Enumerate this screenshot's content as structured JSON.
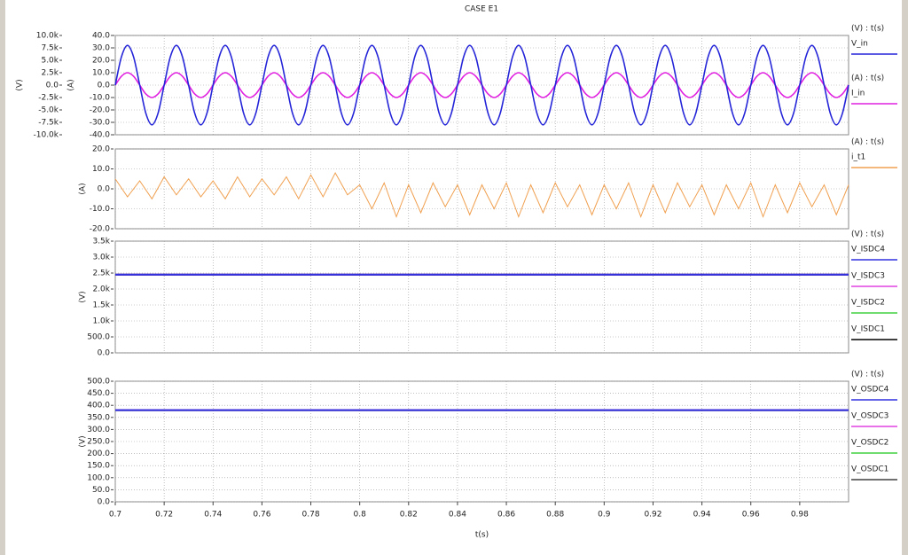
{
  "title": "CASE E1",
  "chart_data": [
    {
      "type": "line",
      "ylabel": "(V)",
      "y2label": "(A)",
      "xlim": [
        0.7,
        1.0
      ],
      "xticks": [
        0.7,
        0.72,
        0.74,
        0.76,
        0.78,
        0.8,
        0.82,
        0.84,
        0.86,
        0.88,
        0.9,
        0.92,
        0.94,
        0.96,
        0.98
      ],
      "ylim": [
        -10000,
        10000
      ],
      "yticks": [
        {
          "value": -10000,
          "label": "-10.0k"
        },
        {
          "value": -7500,
          "label": "-7.5k"
        },
        {
          "value": -5000,
          "label": "-5.0k"
        },
        {
          "value": -2500,
          "label": "-2.5k"
        },
        {
          "value": 0,
          "label": "0.0"
        },
        {
          "value": 2500,
          "label": "2.5k"
        },
        {
          "value": 5000,
          "label": "5.0k"
        },
        {
          "value": 7500,
          "label": "7.5k"
        },
        {
          "value": 10000,
          "label": "10.0k"
        }
      ],
      "y2lim": [
        -40,
        40
      ],
      "y2ticks": [
        {
          "value": -40,
          "label": "-40.0"
        },
        {
          "value": -30,
          "label": "-30.0"
        },
        {
          "value": -20,
          "label": "-20.0"
        },
        {
          "value": -10,
          "label": "-10.0"
        },
        {
          "value": 0,
          "label": "0.0"
        },
        {
          "value": 10,
          "label": "10.0"
        },
        {
          "value": 20,
          "label": "20.0"
        },
        {
          "value": 30,
          "label": "30.0"
        },
        {
          "value": 40,
          "label": "40.0"
        }
      ],
      "grid": true,
      "x": [
        0.7,
        0.7025,
        0.705,
        0.7075,
        0.71,
        0.7125,
        0.715,
        0.7175,
        0.72,
        0.7225,
        0.725,
        0.7275,
        0.73,
        0.7325,
        0.735,
        0.7375,
        0.74,
        0.7425,
        0.745,
        0.7475,
        0.75,
        0.7525,
        0.755,
        0.7575,
        0.76,
        0.7625,
        0.765,
        0.7675,
        0.77,
        0.7725,
        0.775,
        0.7775,
        0.78,
        0.7825,
        0.785,
        0.7875,
        0.79,
        0.7925,
        0.795,
        0.7975,
        0.8,
        0.8025,
        0.805,
        0.8075,
        0.81,
        0.8125,
        0.815,
        0.8175,
        0.82,
        0.8225,
        0.825,
        0.8275,
        0.83,
        0.8325,
        0.835,
        0.8375,
        0.84,
        0.8425,
        0.845,
        0.8475,
        0.85,
        0.8525,
        0.855,
        0.8575,
        0.86,
        0.8625,
        0.865,
        0.8675,
        0.87,
        0.8725,
        0.875,
        0.8775,
        0.88,
        0.8825,
        0.885,
        0.8875,
        0.89,
        0.8925,
        0.895,
        0.8975,
        0.9,
        0.9025,
        0.905,
        0.9075,
        0.91,
        0.9125,
        0.915,
        0.9175,
        0.92,
        0.9225,
        0.925,
        0.9275,
        0.93,
        0.9325,
        0.935,
        0.9375,
        0.94,
        0.9425,
        0.945,
        0.9475,
        0.95,
        0.9525,
        0.955,
        0.9575,
        0.96,
        0.9625,
        0.965,
        0.9675,
        0.97,
        0.9725,
        0.975,
        0.9775,
        0.98,
        0.9825,
        0.985,
        0.9875,
        0.99,
        0.9925,
        0.995,
        0.9975,
        1.0
      ],
      "series": [
        {
          "name": "V_in",
          "legend_title": "(V) : t(s)",
          "color": "#2424d8",
          "smooth": true,
          "values": [
            0,
            5657,
            8000,
            5657,
            0,
            -5657,
            -8000,
            -5657,
            0,
            5657,
            8000,
            5657,
            0,
            -5657,
            -8000,
            -5657,
            0,
            5657,
            8000,
            5657,
            0,
            -5657,
            -8000,
            -5657,
            0,
            5657,
            8000,
            5657,
            0,
            -5657,
            -8000,
            -5657,
            0,
            5657,
            8000,
            5657,
            0,
            -5657,
            -8000,
            -5657,
            0,
            5657,
            8000,
            5657,
            0,
            -5657,
            -8000,
            -5657,
            0,
            5657,
            8000,
            5657,
            0,
            -5657,
            -8000,
            -5657,
            0,
            5657,
            8000,
            5657,
            0,
            -5657,
            -8000,
            -5657,
            0,
            5657,
            8000,
            5657,
            0,
            -5657,
            -8000,
            -5657,
            0,
            5657,
            8000,
            5657,
            0,
            -5657,
            -8000,
            -5657,
            0,
            5657,
            8000,
            5657,
            0,
            -5657,
            -8000,
            -5657,
            0,
            5657,
            8000,
            5657,
            0,
            -5657,
            -8000,
            -5657,
            0,
            5657,
            8000,
            5657,
            0,
            -5657,
            -8000,
            -5657,
            0,
            5657,
            8000,
            5657,
            0,
            -5657,
            -8000,
            -5657,
            0,
            5657,
            8000,
            5657,
            0,
            -5657,
            -8000,
            -5657,
            0
          ]
        },
        {
          "name": "I_in",
          "legend_title": "(A) : t(s)",
          "color": "#e020e0",
          "axis": "y2",
          "smooth": true,
          "values": [
            0,
            7.1,
            10,
            7.1,
            0,
            -7.1,
            -10,
            -7.1,
            0,
            7.1,
            10,
            7.1,
            0,
            -7.1,
            -10,
            -7.1,
            0,
            7.1,
            10,
            7.1,
            0,
            -7.1,
            -10,
            -7.1,
            0,
            7.1,
            10,
            7.1,
            0,
            -7.1,
            -10,
            -7.1,
            0,
            7.1,
            10,
            7.1,
            0,
            -7.1,
            -10,
            -7.1,
            0,
            7.1,
            10,
            7.1,
            0,
            -7.1,
            -10,
            -7.1,
            0,
            7.1,
            10,
            7.1,
            0,
            -7.1,
            -10,
            -7.1,
            0,
            7.1,
            10,
            7.1,
            0,
            -7.1,
            -10,
            -7.1,
            0,
            7.1,
            10,
            7.1,
            0,
            -7.1,
            -10,
            -7.1,
            0,
            7.1,
            10,
            7.1,
            0,
            -7.1,
            -10,
            -7.1,
            0,
            7.1,
            10,
            7.1,
            0,
            -7.1,
            -10,
            -7.1,
            0,
            7.1,
            10,
            7.1,
            0,
            -7.1,
            -10,
            -7.1,
            0,
            7.1,
            10,
            7.1,
            0,
            -7.1,
            -10,
            -7.1,
            0,
            7.1,
            10,
            7.1,
            0,
            -7.1,
            -10,
            -7.1,
            0,
            7.1,
            10,
            7.1,
            0,
            -7.1,
            -10,
            -7.1,
            0
          ]
        }
      ]
    },
    {
      "type": "line",
      "ylabel": "(A)",
      "xlim": [
        0.7,
        1.0
      ],
      "xticks": [
        0.7,
        0.72,
        0.74,
        0.76,
        0.78,
        0.8,
        0.82,
        0.84,
        0.86,
        0.88,
        0.9,
        0.92,
        0.94,
        0.96,
        0.98
      ],
      "ylim": [
        -20,
        20
      ],
      "yticks": [
        {
          "value": -20,
          "label": "-20.0"
        },
        {
          "value": -10,
          "label": "-10.0"
        },
        {
          "value": 0,
          "label": "0.0"
        },
        {
          "value": 10,
          "label": "10.0"
        },
        {
          "value": 20,
          "label": "20.0"
        }
      ],
      "grid": true,
      "x": [
        0.7,
        0.705,
        0.71,
        0.715,
        0.72,
        0.725,
        0.73,
        0.735,
        0.74,
        0.745,
        0.75,
        0.755,
        0.76,
        0.765,
        0.77,
        0.775,
        0.78,
        0.785,
        0.79,
        0.795,
        0.8,
        0.805,
        0.81,
        0.815,
        0.82,
        0.825,
        0.83,
        0.835,
        0.84,
        0.845,
        0.85,
        0.855,
        0.86,
        0.865,
        0.87,
        0.875,
        0.88,
        0.885,
        0.89,
        0.895,
        0.9,
        0.905,
        0.91,
        0.915,
        0.92,
        0.925,
        0.93,
        0.935,
        0.94,
        0.945,
        0.95,
        0.955,
        0.96,
        0.965,
        0.97,
        0.975,
        0.98,
        0.985,
        0.99,
        0.995,
        1.0
      ],
      "series": [
        {
          "name": "i_t1",
          "legend_title": "(A) : t(s)",
          "color": "#f0a050",
          "values": [
            5,
            -4,
            4,
            -5,
            6,
            -3,
            5,
            -4,
            4,
            -5,
            6,
            -4,
            5,
            -3,
            6,
            -5,
            7,
            -4,
            8,
            -3,
            2,
            -10,
            3,
            -14,
            2,
            -12,
            3,
            -9,
            2,
            -13,
            2,
            -10,
            3,
            -14,
            2,
            -12,
            3,
            -9,
            2,
            -13,
            2,
            -10,
            3,
            -14,
            2,
            -12,
            3,
            -9,
            2,
            -13,
            2,
            -10,
            3,
            -14,
            2,
            -12,
            3,
            -9,
            2,
            -13,
            2
          ]
        }
      ]
    },
    {
      "type": "line",
      "ylabel": "(V)",
      "legend_title": "(V) : t(s)",
      "xlim": [
        0.7,
        1.0
      ],
      "xticks": [
        0.7,
        0.72,
        0.74,
        0.76,
        0.78,
        0.8,
        0.82,
        0.84,
        0.86,
        0.88,
        0.9,
        0.92,
        0.94,
        0.96,
        0.98
      ],
      "ylim": [
        0,
        3500
      ],
      "yticks": [
        {
          "value": 0,
          "label": "0.0"
        },
        {
          "value": 500,
          "label": "500.0"
        },
        {
          "value": 1000,
          "label": "1.0k"
        },
        {
          "value": 1500,
          "label": "1.5k"
        },
        {
          "value": 2000,
          "label": "2.0k"
        },
        {
          "value": 2500,
          "label": "2.5k"
        },
        {
          "value": 3000,
          "label": "3.0k"
        },
        {
          "value": 3500,
          "label": "3.5k"
        }
      ],
      "grid": true,
      "x": [
        0.7,
        1.0
      ],
      "series": [
        {
          "name": "V_ISDC4",
          "color": "#3030e0",
          "values": [
            2450,
            2450
          ]
        },
        {
          "name": "V_ISDC3",
          "color": "#e040e0",
          "values": [
            2450,
            2450
          ]
        },
        {
          "name": "V_ISDC2",
          "color": "#40d040",
          "values": [
            2450,
            2450
          ]
        },
        {
          "name": "V_ISDC1",
          "color": "#000000",
          "values": [
            2450,
            2450
          ]
        }
      ]
    },
    {
      "type": "line",
      "ylabel": "(V)",
      "xlabel": "t(s)",
      "legend_title": "(V) : t(s)",
      "xlim": [
        0.7,
        1.0
      ],
      "xticks": [
        0.7,
        0.72,
        0.74,
        0.76,
        0.78,
        0.8,
        0.82,
        0.84,
        0.86,
        0.88,
        0.9,
        0.92,
        0.94,
        0.96,
        0.98
      ],
      "ylim": [
        0,
        500
      ],
      "yticks": [
        {
          "value": 0,
          "label": "0.0"
        },
        {
          "value": 50,
          "label": "50.0"
        },
        {
          "value": 100,
          "label": "100.0"
        },
        {
          "value": 150,
          "label": "150.0"
        },
        {
          "value": 200,
          "label": "200.0"
        },
        {
          "value": 250,
          "label": "250.0"
        },
        {
          "value": 300,
          "label": "300.0"
        },
        {
          "value": 350,
          "label": "350.0"
        },
        {
          "value": 400,
          "label": "400.0"
        },
        {
          "value": 450,
          "label": "450.0"
        },
        {
          "value": 500,
          "label": "500.0"
        }
      ],
      "grid": true,
      "x": [
        0.7,
        1.0
      ],
      "series": [
        {
          "name": "V_OSDC4",
          "color": "#3030e0",
          "values": [
            380,
            380
          ]
        },
        {
          "name": "V_OSDC3",
          "color": "#e040e0",
          "values": [
            380,
            380
          ]
        },
        {
          "name": "V_OSDC2",
          "color": "#40d040",
          "values": [
            380,
            380
          ]
        },
        {
          "name": "V_OSDC1",
          "color": "#404040",
          "values": [
            380,
            380
          ]
        }
      ]
    }
  ]
}
